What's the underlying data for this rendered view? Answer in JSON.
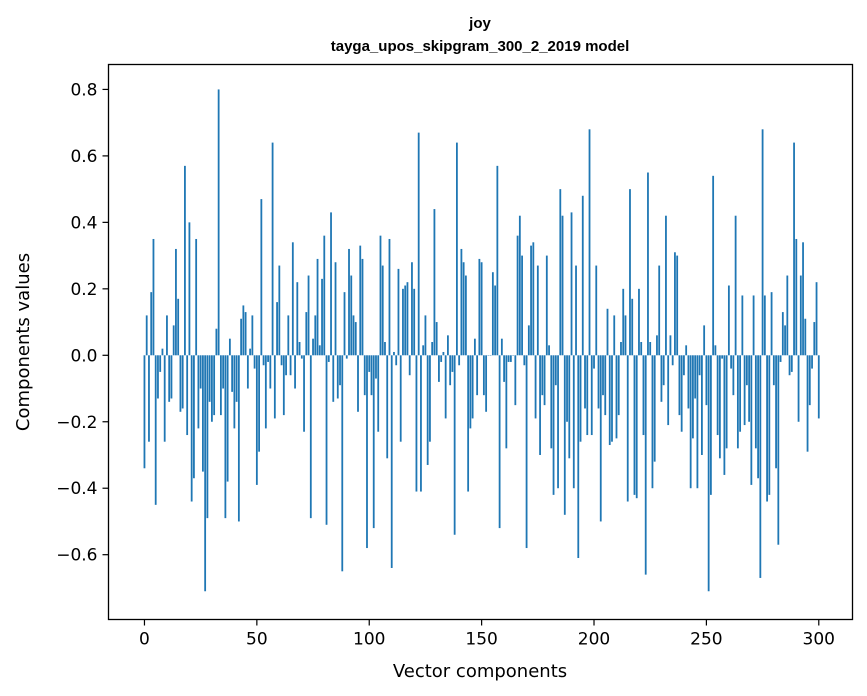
{
  "chart_data": {
    "type": "bar",
    "title": "joy",
    "subtitle": "tayga_upos_skipgram_300_2_2019 model",
    "xlabel": "Vector components",
    "ylabel": "Components values",
    "xlim": [
      -16,
      315
    ],
    "ylim": [
      -0.795,
      0.875
    ],
    "xticks": [
      0,
      50,
      100,
      150,
      200,
      250,
      300
    ],
    "xtick_labels": [
      "0",
      "50",
      "100",
      "150",
      "200",
      "250",
      "300"
    ],
    "yticks": [
      -0.6,
      -0.4,
      -0.2,
      0.0,
      0.2,
      0.4,
      0.6,
      0.8
    ],
    "ytick_labels": [
      "−0.6",
      "−0.4",
      "−0.2",
      "0.0",
      "0.2",
      "0.4",
      "0.6",
      "0.8"
    ],
    "grid": false,
    "bar_color": "#1f77b4",
    "values": [
      -0.34,
      0.12,
      -0.26,
      0.19,
      0.35,
      -0.45,
      -0.13,
      -0.05,
      0.02,
      -0.26,
      0.12,
      -0.14,
      -0.13,
      0.09,
      0.32,
      0.17,
      -0.17,
      -0.16,
      0.57,
      -0.24,
      0.4,
      -0.44,
      -0.37,
      0.35,
      -0.22,
      -0.1,
      -0.35,
      -0.71,
      -0.49,
      -0.14,
      -0.2,
      -0.18,
      0.08,
      0.8,
      -0.18,
      -0.1,
      -0.49,
      -0.38,
      0.05,
      -0.11,
      -0.22,
      -0.14,
      -0.5,
      0.11,
      0.15,
      0.13,
      -0.1,
      0.02,
      0.12,
      -0.04,
      -0.39,
      -0.29,
      0.47,
      -0.03,
      -0.22,
      -0.02,
      -0.1,
      0.64,
      -0.19,
      0.16,
      0.27,
      -0.03,
      -0.18,
      -0.06,
      0.12,
      -0.06,
      0.34,
      -0.1,
      0.22,
      0.04,
      -0.01,
      -0.23,
      0.13,
      0.24,
      -0.49,
      0.05,
      0.12,
      0.29,
      0.03,
      0.23,
      0.36,
      -0.51,
      -0.02,
      0.43,
      -0.14,
      0.28,
      -0.13,
      -0.09,
      -0.65,
      0.19,
      -0.01,
      0.32,
      0.24,
      0.12,
      0.1,
      -0.17,
      0.33,
      0.29,
      -0.12,
      -0.58,
      -0.05,
      -0.12,
      -0.52,
      -0.07,
      -0.23,
      0.36,
      0.27,
      0.04,
      -0.31,
      0.35,
      -0.64,
      0.01,
      -0.03,
      0.26,
      -0.26,
      0.2,
      0.21,
      0.22,
      -0.06,
      0.28,
      0.2,
      -0.41,
      0.67,
      -0.41,
      0.03,
      0.12,
      -0.33,
      -0.26,
      0.04,
      0.44,
      0.1,
      -0.08,
      -0.02,
      0.01,
      -0.19,
      0.06,
      -0.09,
      -0.05,
      -0.54,
      0.64,
      -0.03,
      0.32,
      0.28,
      0.24,
      -0.41,
      -0.22,
      -0.19,
      0.05,
      -0.12,
      0.29,
      0.28,
      -0.12,
      -0.17,
      0.0,
      0.0,
      0.25,
      0.21,
      0.57,
      -0.52,
      0.05,
      -0.08,
      -0.28,
      -0.02,
      -0.02,
      0.0,
      -0.15,
      0.36,
      0.42,
      0.3,
      -0.03,
      -0.58,
      0.09,
      0.33,
      0.34,
      -0.19,
      0.27,
      -0.3,
      -0.12,
      -0.15,
      0.3,
      0.03,
      -0.28,
      -0.42,
      -0.09,
      -0.4,
      0.5,
      0.42,
      -0.48,
      -0.2,
      -0.31,
      0.43,
      -0.4,
      0.27,
      -0.61,
      -0.26,
      0.48,
      -0.16,
      -0.24,
      0.68,
      -0.24,
      -0.04,
      0.27,
      -0.16,
      -0.5,
      -0.12,
      -0.18,
      0.14,
      -0.27,
      -0.26,
      0.12,
      -0.25,
      -0.18,
      0.04,
      0.2,
      0.12,
      -0.44,
      0.5,
      0.17,
      -0.42,
      -0.43,
      0.2,
      0.04,
      -0.24,
      -0.66,
      0.55,
      0.04,
      -0.4,
      -0.32,
      0.06,
      0.27,
      -0.14,
      -0.09,
      0.42,
      -0.21,
      0.06,
      -0.03,
      0.31,
      0.3,
      -0.18,
      -0.23,
      -0.06,
      0.03,
      -0.16,
      -0.4,
      -0.25,
      -0.13,
      -0.4,
      -0.06,
      -0.3,
      0.09,
      -0.15,
      -0.71,
      -0.42,
      0.54,
      0.03,
      -0.24,
      -0.31,
      -0.01,
      -0.36,
      -0.28,
      0.21,
      -0.04,
      -0.12,
      0.42,
      -0.28,
      -0.23,
      0.18,
      -0.21,
      -0.09,
      -0.2,
      -0.39,
      0.18,
      -0.28,
      -0.37,
      -0.67,
      0.68,
      0.18,
      -0.44,
      -0.42,
      0.19,
      -0.09,
      -0.34,
      -0.57,
      -0.02,
      0.13,
      0.09,
      0.24,
      -0.06,
      -0.05,
      0.64,
      0.35,
      -0.2,
      0.24,
      0.34,
      0.11,
      -0.29,
      -0.15,
      -0.04,
      0.1,
      0.22,
      -0.19
    ]
  }
}
